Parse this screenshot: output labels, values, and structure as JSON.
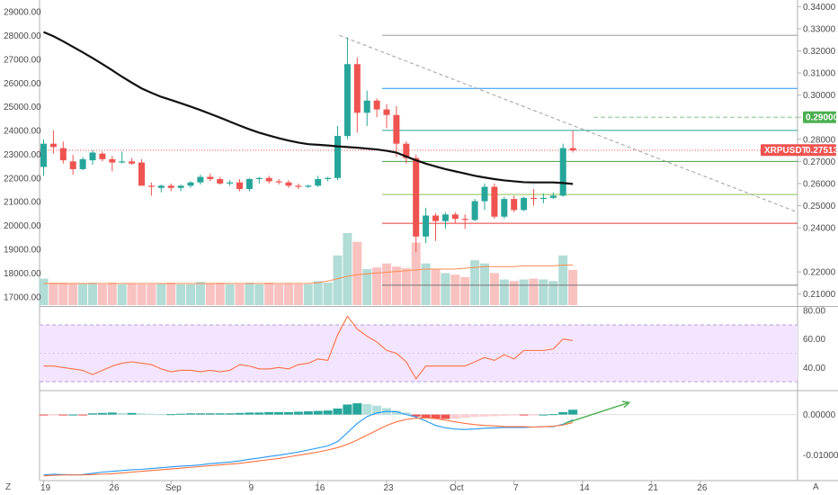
{
  "colors": {
    "up": "#26a69a",
    "down": "#ef5350",
    "ma": "#111111",
    "rsi": "#ff6f3c",
    "rsi_band": "#f3e5ff",
    "macd": "#2196f3",
    "signal": "#ff6f3c",
    "axis_text": "#4a4a4a",
    "arrow": "#4caf50"
  },
  "corner_left": "Z",
  "corner_right": "A",
  "ticker_tag": {
    "symbol": "XRPUSDT",
    "value": "0.27513",
    "color": "#ef5350"
  },
  "target_tag": {
    "value": "0.29000",
    "color": "#4caf50"
  },
  "chart_data": [
    {
      "type": "candlestick",
      "title": "",
      "grid": false,
      "x_ticks": [
        {
          "label": "19",
          "i": 0
        },
        {
          "label": "26",
          "i": 7
        },
        {
          "label": "Sep",
          "i": 13
        },
        {
          "label": "9",
          "i": 21
        },
        {
          "label": "16",
          "i": 28
        },
        {
          "label": "23",
          "i": 35
        },
        {
          "label": "Oct",
          "i": 42
        },
        {
          "label": "7",
          "i": 48
        },
        {
          "label": "14",
          "i": 55
        },
        {
          "label": "21",
          "i": 62
        },
        {
          "label": "26",
          "i": 67
        }
      ],
      "left_axis": {
        "labels": [
          "29000.00",
          "28000.00",
          "27000.00",
          "26000.00",
          "25000.00",
          "24000.00",
          "23000.00",
          "22000.00",
          "21000.00",
          "20000.00",
          "19000.00",
          "18000.00",
          "17000.00"
        ],
        "values": [
          29000,
          28000,
          27000,
          26000,
          25000,
          24000,
          23000,
          22000,
          21000,
          20000,
          19000,
          18000,
          17000
        ],
        "range": [
          16650,
          29500
        ]
      },
      "right_axis": {
        "labels": [
          "0.34000",
          "0.33000",
          "0.32000",
          "0.31000",
          "0.30000",
          "0.29000",
          "0.28000",
          "0.27000",
          "0.26000",
          "0.25000",
          "0.24000",
          "0.22000",
          "0.21000"
        ],
        "values": [
          0.34,
          0.33,
          0.32,
          0.31,
          0.3,
          0.29,
          0.28,
          0.27,
          0.26,
          0.25,
          0.24,
          0.22,
          0.21
        ],
        "range": [
          0.205,
          0.343
        ]
      },
      "ohlc": [
        [
          0.2675,
          0.28,
          0.2635,
          0.278
        ],
        [
          0.278,
          0.284,
          0.2735,
          0.2765
        ],
        [
          0.276,
          0.279,
          0.269,
          0.2705
        ],
        [
          0.27,
          0.273,
          0.264,
          0.2665
        ],
        [
          0.2665,
          0.272,
          0.266,
          0.271
        ],
        [
          0.2705,
          0.275,
          0.2685,
          0.274
        ],
        [
          0.2735,
          0.2745,
          0.27,
          0.271
        ],
        [
          0.271,
          0.2725,
          0.2655,
          0.2695
        ],
        [
          0.2695,
          0.2745,
          0.269,
          0.27
        ],
        [
          0.27,
          0.2715,
          0.2685,
          0.269
        ],
        [
          0.2695,
          0.271,
          0.262,
          0.259
        ],
        [
          0.259,
          0.2605,
          0.2545,
          0.2585
        ],
        [
          0.258,
          0.2595,
          0.256,
          0.259
        ],
        [
          0.259,
          0.26,
          0.2565,
          0.258
        ],
        [
          0.258,
          0.2595,
          0.2565,
          0.259
        ],
        [
          0.259,
          0.261,
          0.258,
          0.2605
        ],
        [
          0.2605,
          0.264,
          0.2595,
          0.263
        ],
        [
          0.263,
          0.2645,
          0.261,
          0.262
        ],
        [
          0.262,
          0.263,
          0.2595,
          0.26
        ],
        [
          0.26,
          0.2615,
          0.259,
          0.2605
        ],
        [
          0.2605,
          0.262,
          0.2565,
          0.2575
        ],
        [
          0.2575,
          0.2625,
          0.2565,
          0.262
        ],
        [
          0.262,
          0.263,
          0.26,
          0.2625
        ],
        [
          0.2625,
          0.2635,
          0.26,
          0.261
        ],
        [
          0.261,
          0.262,
          0.2595,
          0.2605
        ],
        [
          0.2605,
          0.2615,
          0.258,
          0.259
        ],
        [
          0.259,
          0.26,
          0.2575,
          0.2585
        ],
        [
          0.2585,
          0.2595,
          0.258,
          0.259
        ],
        [
          0.259,
          0.2635,
          0.2585,
          0.262
        ],
        [
          0.262,
          0.263,
          0.261,
          0.2625
        ],
        [
          0.2625,
          0.286,
          0.2615,
          0.2815
        ],
        [
          0.2815,
          0.326,
          0.28,
          0.314
        ],
        [
          0.314,
          0.317,
          0.283,
          0.292
        ],
        [
          0.292,
          0.302,
          0.286,
          0.2975
        ],
        [
          0.2975,
          0.2985,
          0.29,
          0.2935
        ],
        [
          0.2935,
          0.296,
          0.285,
          0.291
        ],
        [
          0.291,
          0.295,
          0.272,
          0.278
        ],
        [
          0.278,
          0.279,
          0.269,
          0.2715
        ],
        [
          0.2715,
          0.273,
          0.229,
          0.236
        ],
        [
          0.236,
          0.249,
          0.233,
          0.2455
        ],
        [
          0.2455,
          0.2465,
          0.234,
          0.243
        ],
        [
          0.243,
          0.247,
          0.2395,
          0.246
        ],
        [
          0.246,
          0.247,
          0.242,
          0.244
        ],
        [
          0.244,
          0.246,
          0.2395,
          0.2435
        ],
        [
          0.2435,
          0.253,
          0.243,
          0.252
        ],
        [
          0.252,
          0.26,
          0.248,
          0.2585
        ],
        [
          0.2585,
          0.26,
          0.244,
          0.245
        ],
        [
          0.245,
          0.254,
          0.244,
          0.253
        ],
        [
          0.253,
          0.2545,
          0.247,
          0.248
        ],
        [
          0.248,
          0.254,
          0.2475,
          0.2535
        ],
        [
          0.2535,
          0.2575,
          0.25,
          0.253
        ],
        [
          0.253,
          0.2555,
          0.251,
          0.2535
        ],
        [
          0.2535,
          0.256,
          0.253,
          0.2545
        ],
        [
          0.2545,
          0.278,
          0.254,
          0.276
        ],
        [
          0.276,
          0.284,
          0.274,
          0.275
        ]
      ],
      "ma": [
        0.3285,
        0.3266,
        0.3243,
        0.3218,
        0.3193,
        0.3167,
        0.314,
        0.3112,
        0.3083,
        0.3056,
        0.303,
        0.301,
        0.2992,
        0.2978,
        0.2963,
        0.2948,
        0.2932,
        0.2915,
        0.2898,
        0.288,
        0.2862,
        0.2845,
        0.283,
        0.2817,
        0.2805,
        0.2794,
        0.2785,
        0.2778,
        0.2775,
        0.2772,
        0.2768,
        0.2765,
        0.2762,
        0.2758,
        0.2754,
        0.2748,
        0.274,
        0.2722,
        0.2705,
        0.269,
        0.2677,
        0.2665,
        0.2655,
        0.2645,
        0.2635,
        0.2627,
        0.262,
        0.2614,
        0.261,
        0.2606,
        0.2605,
        0.2605,
        0.2605,
        0.2602,
        0.2598
      ],
      "horizontal_lines": [
        {
          "value": 0.327,
          "color": "#9e9e9e",
          "style": "solid"
        },
        {
          "value": 0.303,
          "color": "#2196f3",
          "style": "solid"
        },
        {
          "value": 0.29,
          "color": "#81c784",
          "style": "dashed"
        },
        {
          "value": 0.284,
          "color": "#26a69a",
          "style": "solid"
        },
        {
          "value": 0.275,
          "color": "#ef5350",
          "style": "dotted"
        },
        {
          "value": 0.27,
          "color": "#43a047",
          "style": "solid"
        },
        {
          "value": 0.255,
          "color": "#8bc34a",
          "style": "solid"
        },
        {
          "value": 0.242,
          "color": "#e53935",
          "style": "solid"
        },
        {
          "value": 0.214,
          "color": "#757575",
          "style": "solid"
        }
      ],
      "trendline": {
        "from": [
          30,
          0.327
        ],
        "to": [
          67,
          0.247
        ],
        "color": "#9e9e9e",
        "style": "dashed"
      },
      "volume": [
        0.33,
        0.28,
        0.28,
        0.27,
        0.27,
        0.28,
        0.26,
        0.28,
        0.26,
        0.27,
        0.26,
        0.26,
        0.27,
        0.28,
        0.26,
        0.26,
        0.29,
        0.27,
        0.28,
        0.26,
        0.26,
        0.28,
        0.26,
        0.28,
        0.26,
        0.27,
        0.26,
        0.26,
        0.3,
        0.28,
        0.62,
        0.9,
        0.79,
        0.45,
        0.47,
        0.52,
        0.48,
        0.46,
        0.78,
        0.52,
        0.45,
        0.4,
        0.38,
        0.35,
        0.56,
        0.52,
        0.4,
        0.32,
        0.3,
        0.32,
        0.33,
        0.32,
        0.3,
        0.62,
        0.44
      ],
      "volume_ma": [
        0.27,
        0.27,
        0.27,
        0.27,
        0.27,
        0.27,
        0.27,
        0.27,
        0.27,
        0.27,
        0.27,
        0.27,
        0.27,
        0.27,
        0.27,
        0.27,
        0.27,
        0.27,
        0.27,
        0.27,
        0.27,
        0.27,
        0.27,
        0.27,
        0.27,
        0.27,
        0.27,
        0.27,
        0.28,
        0.3,
        0.33,
        0.36,
        0.38,
        0.39,
        0.4,
        0.41,
        0.42,
        0.43,
        0.44,
        0.45,
        0.45,
        0.45,
        0.45,
        0.46,
        0.47,
        0.48,
        0.48,
        0.48,
        0.48,
        0.49,
        0.49,
        0.49,
        0.49,
        0.5,
        0.5
      ]
    },
    {
      "type": "line",
      "title": "",
      "axis_labels": [
        "80.00",
        "60.00",
        "40.00"
      ],
      "axis_values": [
        80,
        60,
        40
      ],
      "ylim": [
        25,
        82
      ],
      "band": [
        30,
        70
      ],
      "values": [
        41,
        41,
        40,
        39,
        38,
        35,
        38,
        41,
        43,
        44,
        43,
        42,
        39,
        37,
        38,
        38,
        37,
        38,
        37,
        38,
        42,
        41,
        39,
        39,
        40,
        39,
        42,
        43,
        46,
        45,
        63,
        76,
        67,
        62,
        58,
        52,
        50,
        44,
        32,
        41,
        41,
        41,
        41,
        41,
        44,
        47,
        45,
        49,
        46,
        52,
        52,
        52,
        53,
        60,
        59
      ]
    },
    {
      "type": "bar",
      "title": "",
      "axis_labels": [
        "0.00000",
        "-0.01000"
      ],
      "axis_values": [
        0.0,
        -0.01
      ],
      "ylim": [
        -0.0155,
        0.0055
      ],
      "histogram": [
        -0.0002,
        -0.0001,
        -0.0001,
        0.0,
        -0.0001,
        0.0003,
        0.0004,
        0.0005,
        0.0004,
        0.0004,
        0.0003,
        0.0002,
        0.0001,
        0.0001,
        0.0002,
        0.0003,
        0.0003,
        0.0003,
        0.0003,
        0.0003,
        0.0004,
        0.0005,
        0.0005,
        0.0006,
        0.0006,
        0.0006,
        0.0007,
        0.0008,
        0.0009,
        0.001,
        0.0015,
        0.0025,
        0.0028,
        0.0026,
        0.0022,
        0.0016,
        0.001,
        0.0005,
        -0.0005,
        -0.0008,
        -0.001,
        -0.0011,
        -0.001,
        -0.0008,
        -0.0006,
        -0.0005,
        -0.0004,
        -0.0003,
        -0.0002,
        -0.0002,
        -0.0001,
        0.0,
        0.0001,
        0.0006,
        0.0012
      ],
      "macd": [
        -0.015,
        -0.0148,
        -0.0149,
        -0.015,
        -0.0149,
        -0.0146,
        -0.0143,
        -0.0141,
        -0.0139,
        -0.0137,
        -0.0136,
        -0.0134,
        -0.0132,
        -0.013,
        -0.0128,
        -0.0127,
        -0.0125,
        -0.0122,
        -0.012,
        -0.0118,
        -0.0115,
        -0.0111,
        -0.0108,
        -0.0104,
        -0.0101,
        -0.0097,
        -0.0093,
        -0.0088,
        -0.0083,
        -0.0078,
        -0.0067,
        -0.0045,
        -0.0022,
        -0.0005,
        0.0004,
        0.0008,
        0.0007,
        0.0,
        -0.0006,
        -0.0016,
        -0.0027,
        -0.0033,
        -0.0036,
        -0.0037,
        -0.0036,
        -0.0034,
        -0.0033,
        -0.0032,
        -0.0032,
        -0.0032,
        -0.0031,
        -0.003,
        -0.003,
        -0.0024,
        -0.0013
      ],
      "signal": [
        -0.0152,
        -0.0151,
        -0.015,
        -0.015,
        -0.015,
        -0.0149,
        -0.0148,
        -0.0147,
        -0.0145,
        -0.0143,
        -0.0141,
        -0.0139,
        -0.0137,
        -0.0135,
        -0.0133,
        -0.0131,
        -0.0129,
        -0.0127,
        -0.0125,
        -0.0123,
        -0.0121,
        -0.0118,
        -0.0115,
        -0.0112,
        -0.0109,
        -0.0105,
        -0.0101,
        -0.0097,
        -0.0093,
        -0.0088,
        -0.0082,
        -0.0074,
        -0.0063,
        -0.0051,
        -0.0039,
        -0.0027,
        -0.0018,
        -0.0012,
        -0.0009,
        -0.0008,
        -0.001,
        -0.0014,
        -0.0018,
        -0.0022,
        -0.0025,
        -0.0027,
        -0.0028,
        -0.003,
        -0.003,
        -0.003,
        -0.0031,
        -0.003,
        -0.0029,
        -0.0026,
        -0.002
      ],
      "arrow": {
        "from": [
          53,
          -0.0022
        ],
        "to": [
          57,
          0.003
        ]
      }
    }
  ]
}
